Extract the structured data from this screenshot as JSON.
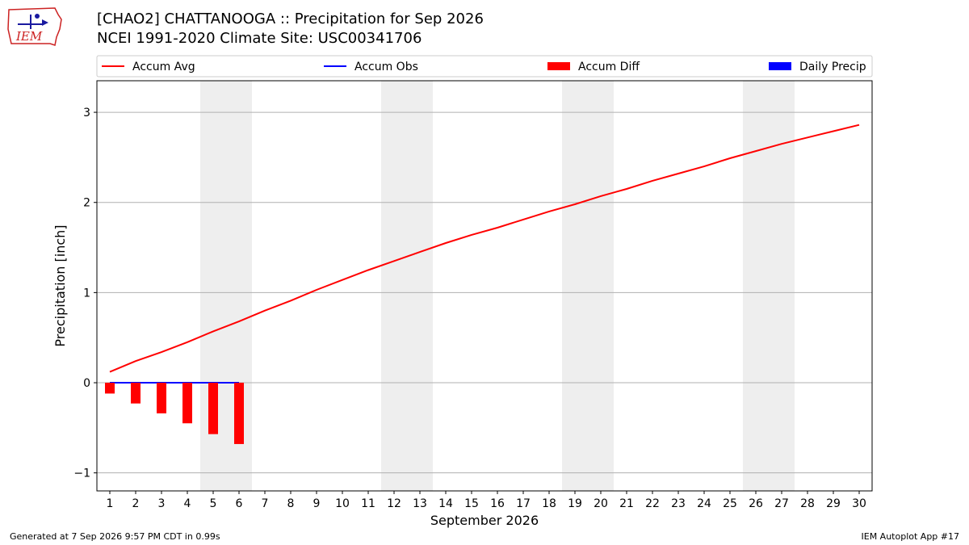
{
  "header": {
    "title_line1": "[CHAO2] CHATTANOOGA :: Precipitation for Sep 2026",
    "title_line2": "NCEI 1991-2020 Climate Site: USC00341706",
    "logo_text": "IEM"
  },
  "footer": {
    "generated": "Generated at 7 Sep 2026 9:57 PM CDT in 0.99s",
    "app": "IEM Autoplot App #17"
  },
  "colors": {
    "accum_avg": "#ff0000",
    "accum_obs": "#0000ff",
    "accum_diff": "#ff0000",
    "daily_precip": "#0000ff",
    "weekend_shade": "#eeeeee",
    "grid": "#b0b0b0"
  },
  "chart_data": {
    "type": "line",
    "xlabel": "September 2026",
    "ylabel": "Precipitation [inch]",
    "x": [
      1,
      2,
      3,
      4,
      5,
      6,
      7,
      8,
      9,
      10,
      11,
      12,
      13,
      14,
      15,
      16,
      17,
      18,
      19,
      20,
      21,
      22,
      23,
      24,
      25,
      26,
      27,
      28,
      29,
      30
    ],
    "xlim": [
      0.5,
      30.5
    ],
    "ylim": [
      -1.2,
      3.35
    ],
    "yticks": [
      -1,
      0,
      1,
      2,
      3
    ],
    "ytick_labels": [
      "−1",
      "0",
      "1",
      "2",
      "3"
    ],
    "grid": "horizontal",
    "legend_position": "top",
    "shaded_ranges": [
      [
        5,
        6
      ],
      [
        12,
        13
      ],
      [
        19,
        20
      ],
      [
        26,
        27
      ]
    ],
    "series": [
      {
        "name": "Accum Avg",
        "kind": "line",
        "x": [
          1,
          2,
          3,
          4,
          5,
          6,
          7,
          8,
          9,
          10,
          11,
          12,
          13,
          14,
          15,
          16,
          17,
          18,
          19,
          20,
          21,
          22,
          23,
          24,
          25,
          26,
          27,
          28,
          29,
          30
        ],
        "values": [
          0.12,
          0.24,
          0.34,
          0.45,
          0.57,
          0.68,
          0.8,
          0.91,
          1.03,
          1.14,
          1.25,
          1.35,
          1.45,
          1.55,
          1.64,
          1.72,
          1.81,
          1.9,
          1.98,
          2.07,
          2.15,
          2.24,
          2.32,
          2.4,
          2.49,
          2.57,
          2.65,
          2.72,
          2.79,
          2.86
        ]
      },
      {
        "name": "Accum Obs",
        "kind": "line",
        "x": [
          1,
          2,
          3,
          4,
          5,
          6
        ],
        "values": [
          0,
          0,
          0,
          0,
          0,
          0
        ]
      },
      {
        "name": "Accum Diff",
        "kind": "bar",
        "x": [
          1,
          2,
          3,
          4,
          5,
          6
        ],
        "values": [
          -0.12,
          -0.23,
          -0.34,
          -0.45,
          -0.57,
          -0.68
        ]
      },
      {
        "name": "Daily Precip",
        "kind": "bar",
        "x": [
          1,
          2,
          3,
          4,
          5,
          6
        ],
        "values": [
          0,
          0,
          0,
          0,
          0,
          0
        ]
      }
    ]
  }
}
